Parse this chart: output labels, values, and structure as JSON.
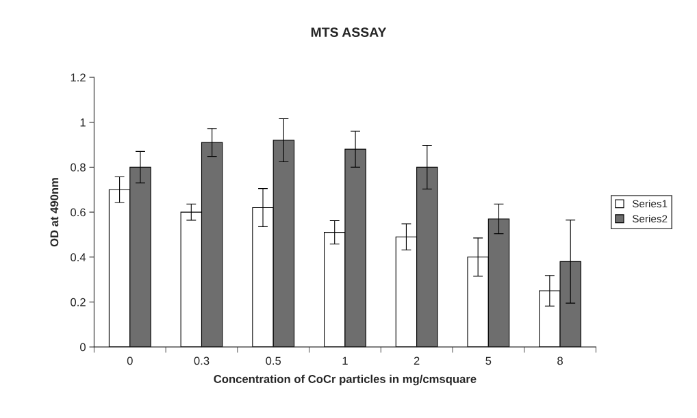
{
  "chart_data": {
    "type": "bar",
    "title": "MTS ASSAY",
    "xlabel": "Concentration of CoCr particles in mg/cmsquare",
    "ylabel": "OD at 490nm",
    "categories": [
      "0",
      "0.3",
      "0.5",
      "1",
      "2",
      "5",
      "8"
    ],
    "series": [
      {
        "name": "Series1",
        "color": "#ffffff",
        "values": [
          0.7,
          0.6,
          0.62,
          0.51,
          0.49,
          0.4,
          0.25
        ],
        "errors": [
          0.057,
          0.036,
          0.085,
          0.052,
          0.058,
          0.085,
          0.068
        ]
      },
      {
        "name": "Series2",
        "color": "#6e6e6e",
        "values": [
          0.8,
          0.91,
          0.92,
          0.88,
          0.8,
          0.57,
          0.38
        ],
        "errors": [
          0.07,
          0.062,
          0.096,
          0.08,
          0.097,
          0.066,
          0.185
        ]
      }
    ],
    "ylim": [
      0,
      1.2
    ],
    "yticks": [
      0,
      0.2,
      0.4,
      0.6,
      0.8,
      1,
      1.2
    ],
    "grid": false,
    "legend": "right"
  }
}
